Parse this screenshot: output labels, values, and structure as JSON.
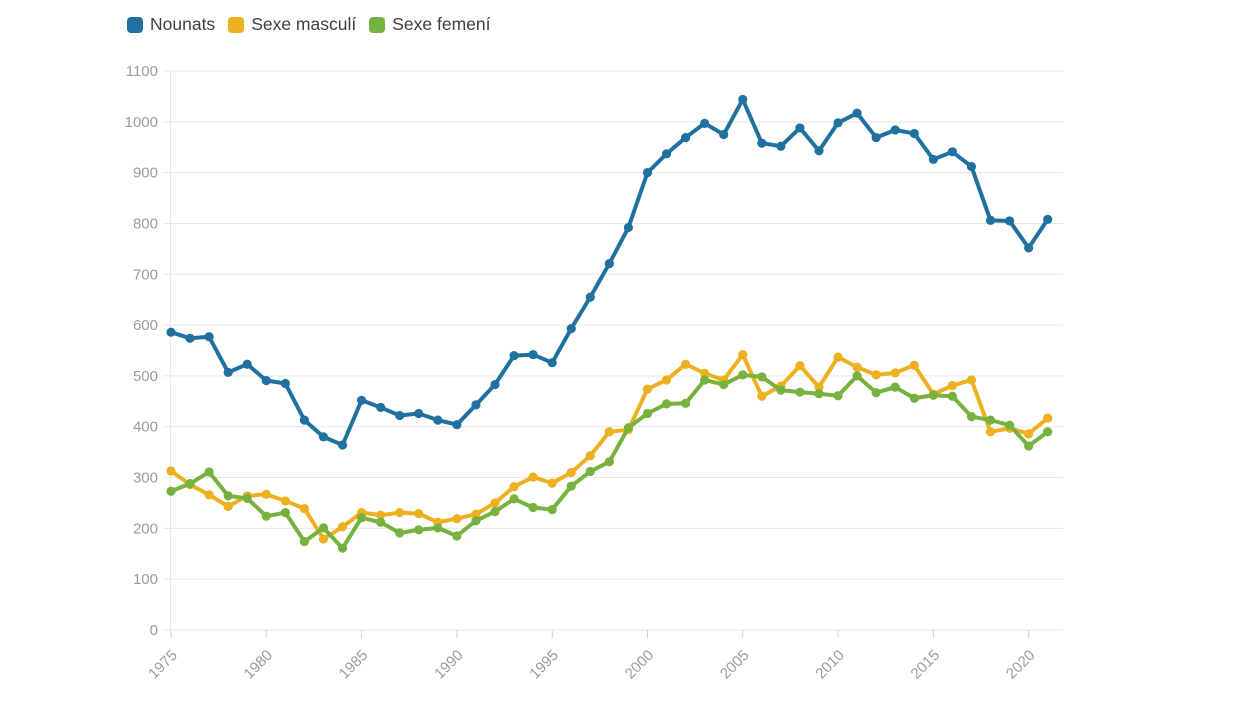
{
  "chart_data": {
    "type": "line",
    "title": "",
    "xlabel": "",
    "ylabel": "",
    "x": [
      1975,
      1976,
      1977,
      1978,
      1979,
      1980,
      1981,
      1982,
      1983,
      1984,
      1985,
      1986,
      1987,
      1988,
      1989,
      1990,
      1991,
      1992,
      1993,
      1994,
      1995,
      1996,
      1997,
      1998,
      1999,
      2000,
      2001,
      2002,
      2003,
      2004,
      2005,
      2006,
      2007,
      2008,
      2009,
      2010,
      2011,
      2012,
      2013,
      2014,
      2015,
      2016,
      2017,
      2018,
      2019,
      2020,
      2021
    ],
    "xticks": [
      1975,
      1980,
      1985,
      1990,
      1995,
      2000,
      2005,
      2010,
      2015,
      2020
    ],
    "yticks": [
      0,
      100,
      200,
      300,
      400,
      500,
      600,
      700,
      800,
      900,
      1000,
      1100
    ],
    "ylim": [
      0,
      1100
    ],
    "grid": "horizontal",
    "legend_position": "top-left",
    "marker": "circle",
    "series": [
      {
        "name": "Nounats",
        "color": "#20719f",
        "values": [
          586,
          574,
          577,
          507,
          523,
          491,
          485,
          413,
          380,
          364,
          452,
          438,
          422,
          426,
          413,
          404,
          443,
          483,
          540,
          542,
          526,
          593,
          655,
          721,
          792,
          900,
          937,
          969,
          997,
          975,
          1044,
          958,
          952,
          988,
          943,
          998,
          1017,
          969,
          984,
          977,
          926,
          941,
          912,
          806,
          805,
          752,
          808
        ]
      },
      {
        "name": "Sexe masculí",
        "color": "#edb01e",
        "values": [
          313,
          286,
          266,
          243,
          264,
          267,
          254,
          239,
          179,
          203,
          231,
          226,
          231,
          229,
          212,
          219,
          228,
          250,
          282,
          301,
          289,
          310,
          343,
          390,
          394,
          474,
          492,
          523,
          505,
          492,
          542,
          460,
          480,
          520,
          478,
          537,
          517,
          502,
          506,
          521,
          464,
          481,
          492,
          390,
          397,
          386,
          417
        ]
      },
      {
        "name": "Sexe femení",
        "color": "#77b13e",
        "values": [
          273,
          288,
          311,
          264,
          259,
          224,
          231,
          174,
          201,
          161,
          221,
          212,
          191,
          197,
          201,
          185,
          215,
          233,
          258,
          241,
          237,
          283,
          312,
          331,
          398,
          426,
          445,
          446,
          492,
          483,
          502,
          498,
          472,
          468,
          465,
          461,
          500,
          467,
          478,
          456,
          462,
          460,
          420,
          413,
          403,
          362,
          390
        ]
      }
    ],
    "style": {
      "grid_color": "#e7e7e7",
      "axis_line_color": "#e0e0e0",
      "tick_label_color": "#9b9b9b",
      "legend_text_color": "#3f3f3f",
      "background": "#ffffff"
    }
  }
}
